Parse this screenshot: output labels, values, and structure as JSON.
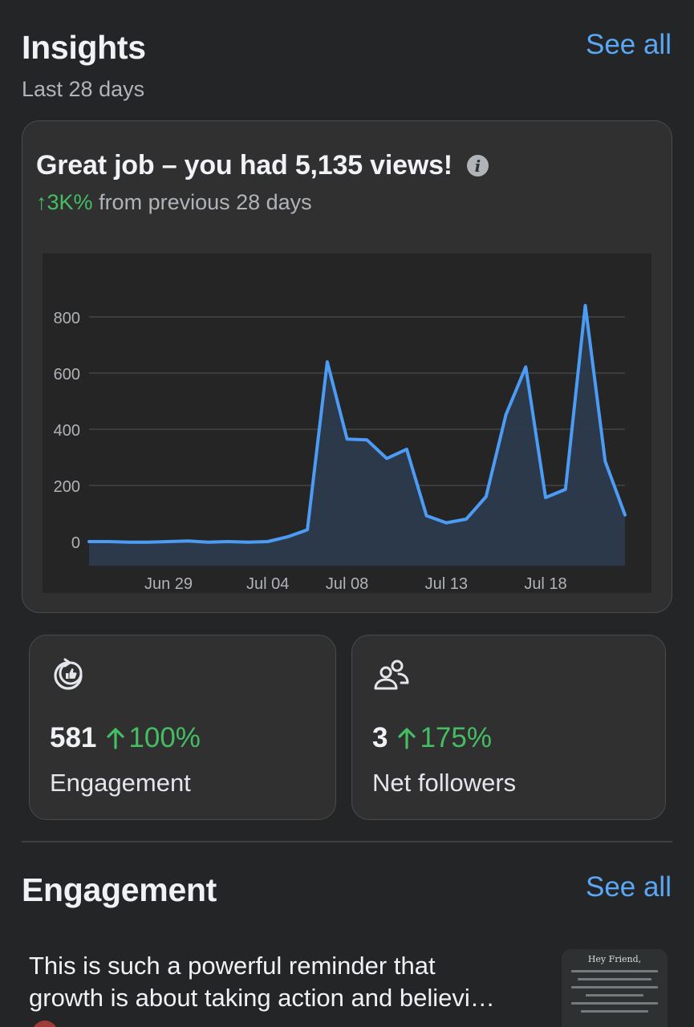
{
  "header": {
    "title": "Insights",
    "see_all": "See all",
    "subtitle": "Last 28 days"
  },
  "summary": {
    "headline": "Great job – you had 5,135 views!",
    "change_value": "↑3K%",
    "change_text": "from previous 28 days"
  },
  "chart_data": {
    "type": "area",
    "x_tick_labels": [
      "Jun 29",
      "Jul 04",
      "Jul 08",
      "Jul 13",
      "Jul 18"
    ],
    "y_tick_labels": [
      "800",
      "600",
      "400",
      "200",
      "0"
    ],
    "ylim": [
      0,
      800
    ],
    "grid": true,
    "series": [
      {
        "x": [
          "Jun 25",
          "Jun 26",
          "Jun 27",
          "Jun 28",
          "Jun 29",
          "Jun 30",
          "Jul 01",
          "Jul 02",
          "Jul 03",
          "Jul 04",
          "Jul 05",
          "Jul 06",
          "Jul 07",
          "Jul 08",
          "Jul 09",
          "Jul 10",
          "Jul 11",
          "Jul 12",
          "Jul 13",
          "Jul 14",
          "Jul 15",
          "Jul 16",
          "Jul 17",
          "Jul 18",
          "Jul 19",
          "Jul 20",
          "Jul 21",
          "Jul 22"
        ],
        "values": [
          0,
          0,
          -2,
          -2,
          0,
          2,
          -2,
          0,
          -2,
          0,
          17,
          42,
          640,
          365,
          362,
          296,
          329,
          92,
          67,
          80,
          160,
          452,
          622,
          157,
          186,
          841,
          286,
          95
        ],
        "color": "#4c9cf5"
      }
    ]
  },
  "stats": [
    {
      "value": "581",
      "change": "100%",
      "label": "Engagement",
      "icon": "like-cycle-icon"
    },
    {
      "value": "3",
      "change": "175%",
      "label": "Net followers",
      "icon": "people-icon"
    }
  ],
  "engagement": {
    "title": "Engagement",
    "see_all": "See all",
    "post_line1": "This is such a powerful reminder that",
    "post_line2": "growth is about taking action and believi…",
    "thumb_title": "Hey Friend,"
  },
  "colors": {
    "accent": "#5aa7f5",
    "positive": "#45bd62",
    "background": "#242526",
    "card": "#303031"
  }
}
